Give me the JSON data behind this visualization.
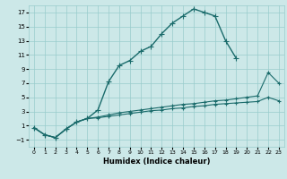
{
  "xlabel": "Humidex (Indice chaleur)",
  "bg_color": "#cce8e8",
  "grid_color": "#99cccc",
  "line_color": "#1a6b6b",
  "series": [
    {
      "x": [
        0,
        1,
        2,
        3,
        4,
        5,
        6,
        7,
        8,
        9,
        10,
        11,
        12,
        13,
        14,
        15,
        16,
        17,
        18,
        19
      ],
      "y": [
        0.7,
        -0.3,
        -0.7,
        0.5,
        1.5,
        2.0,
        3.2,
        7.2,
        9.5,
        10.2,
        11.5,
        12.2,
        14.0,
        15.5,
        16.5,
        17.5,
        17.0,
        16.5,
        13.0,
        10.5
      ]
    },
    {
      "x": [
        0,
        1,
        2,
        3,
        4,
        5,
        6,
        7,
        8,
        9,
        10,
        11,
        12,
        13,
        14,
        15,
        16,
        17,
        18,
        19,
        20,
        21,
        22,
        23
      ],
      "y": [
        0.7,
        -0.3,
        -0.7,
        0.5,
        1.5,
        2.0,
        2.2,
        2.5,
        2.8,
        3.0,
        3.2,
        3.4,
        3.6,
        3.8,
        4.0,
        4.1,
        4.3,
        4.5,
        4.6,
        4.8,
        5.0,
        5.2,
        8.5,
        7.0
      ]
    },
    {
      "x": [
        0,
        1,
        2,
        3,
        4,
        5,
        6,
        7,
        8,
        9,
        10,
        11,
        12,
        13,
        14,
        15,
        16,
        17,
        18,
        19,
        20,
        21,
        22,
        23
      ],
      "y": [
        0.7,
        -0.3,
        -0.7,
        0.5,
        1.5,
        2.0,
        2.1,
        2.3,
        2.5,
        2.7,
        2.9,
        3.1,
        3.2,
        3.4,
        3.5,
        3.7,
        3.8,
        4.0,
        4.1,
        4.2,
        4.3,
        4.4,
        5.0,
        4.5
      ]
    }
  ],
  "ylim": [
    -2,
    18
  ],
  "xlim": [
    -0.5,
    23.5
  ],
  "yticks": [
    -1,
    1,
    3,
    5,
    7,
    9,
    11,
    13,
    15,
    17
  ],
  "xticks": [
    0,
    1,
    2,
    3,
    4,
    5,
    6,
    7,
    8,
    9,
    10,
    11,
    12,
    13,
    14,
    15,
    16,
    17,
    18,
    19,
    20,
    21,
    22,
    23
  ]
}
